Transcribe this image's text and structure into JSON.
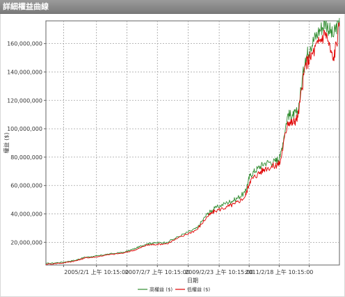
{
  "window": {
    "title": "詳細權益曲線"
  },
  "colors": {
    "series_high": "#2e8b2e",
    "series_low": "#e00000",
    "grid": "#a0a0a0",
    "titlebar": "#8a8a8a"
  },
  "chart_data": {
    "type": "line",
    "title": "",
    "xlabel": "日期",
    "ylabel": "權益 ($)",
    "x_ticks": [
      "2005/2/1 上午 10:15:00",
      "2007/2/7 上午 10:15:00",
      "2009/2/23 上午 10:15:00",
      "2011/2/18 上午 10:15:00"
    ],
    "y_ticks": [
      "20,000,000",
      "40,000,000",
      "60,000,000",
      "80,000,000",
      "100,000,000",
      "120,000,000",
      "140,000,000",
      "160,000,000"
    ],
    "ylim": [
      4000000,
      176000000
    ],
    "xlim": [
      "2003-06-01",
      "2013-02-15"
    ],
    "grid": true,
    "legend_position": "bottom-center",
    "series": [
      {
        "name": "高權益 ($)",
        "color": "#2e8b2e",
        "x": [
          "2003-06-01",
          "2004-01-01",
          "2004-06-01",
          "2004-09-15",
          "2005-01-01",
          "2005-06-01",
          "2006-01-01",
          "2006-06-01",
          "2006-10-01",
          "2007-01-01",
          "2007-06-01",
          "2008-01-01",
          "2008-06-01",
          "2008-10-01",
          "2009-01-01",
          "2009-06-01",
          "2009-09-01",
          "2010-01-01",
          "2010-03-01",
          "2010-06-01",
          "2010-09-01",
          "2011-01-01",
          "2011-03-01",
          "2011-06-01",
          "2011-08-01",
          "2011-10-01",
          "2012-01-01",
          "2012-03-01",
          "2012-06-01",
          "2012-09-01",
          "2012-12-01",
          "2013-02-15"
        ],
        "values": [
          5000000,
          6000000,
          7500000,
          9500000,
          10000000,
          11500000,
          13000000,
          16000000,
          19000000,
          19500000,
          20000000,
          26000000,
          30000000,
          40000000,
          44000000,
          48000000,
          50000000,
          55000000,
          67000000,
          72000000,
          76000000,
          77000000,
          80000000,
          110000000,
          109000000,
          112000000,
          150000000,
          158000000,
          168000000,
          175000000,
          165000000,
          178000000
        ]
      },
      {
        "name": "低權益 ($)",
        "color": "#e00000",
        "x": [
          "2003-06-01",
          "2004-01-01",
          "2004-06-01",
          "2004-09-15",
          "2005-01-01",
          "2005-06-01",
          "2006-01-01",
          "2006-06-01",
          "2006-10-01",
          "2007-01-01",
          "2007-06-01",
          "2008-01-01",
          "2008-06-01",
          "2008-10-01",
          "2009-01-01",
          "2009-06-01",
          "2009-09-01",
          "2010-01-01",
          "2010-03-01",
          "2010-06-01",
          "2010-09-01",
          "2011-01-01",
          "2011-03-01",
          "2011-06-01",
          "2011-08-01",
          "2011-10-01",
          "2012-01-01",
          "2012-03-01",
          "2012-06-01",
          "2012-09-01",
          "2012-12-01",
          "2013-02-15"
        ],
        "values": [
          4500000,
          5500000,
          7000000,
          9000000,
          9500000,
          11000000,
          12500000,
          15000000,
          18000000,
          18500000,
          19000000,
          25000000,
          29000000,
          38000000,
          42000000,
          45000000,
          47000000,
          52000000,
          63000000,
          68000000,
          72000000,
          74000000,
          76000000,
          105000000,
          104000000,
          108000000,
          145000000,
          150000000,
          160000000,
          168000000,
          148000000,
          172000000
        ]
      }
    ]
  }
}
